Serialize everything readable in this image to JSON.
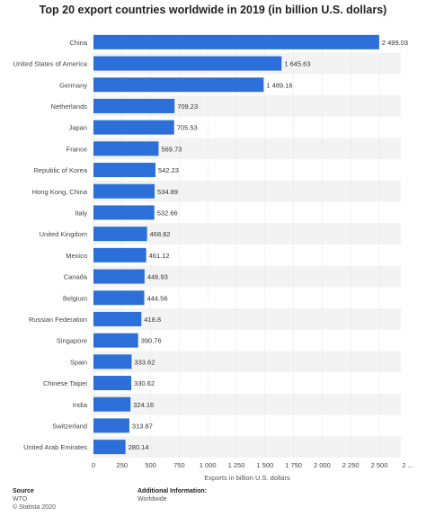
{
  "chart_data": {
    "type": "bar",
    "orientation": "horizontal",
    "title": "Top 20 export countries worldwide in 2019 (in billion U.S. dollars)",
    "xlabel": "Exports in billion U.S. dollars",
    "ylabel": "",
    "xlim": [
      0,
      2750
    ],
    "x_ticks": [
      "0",
      "250",
      "500",
      "750",
      "1 000",
      "1 250",
      "1 500",
      "1 750",
      "2 000",
      "2 250",
      "2 500",
      "2 ..."
    ],
    "categories": [
      "China",
      "United States of America",
      "Germany",
      "Netherlands",
      "Japan",
      "France",
      "Republic of Korea",
      "Hong Kong, China",
      "Italy",
      "United Kingdom",
      "Mexico",
      "Canada",
      "Belgium",
      "Russian Federation",
      "Singapore",
      "Spain",
      "Chinese Taipei",
      "India",
      "Switzerland",
      "United Arab Emirates"
    ],
    "values": [
      2499.03,
      1645.63,
      1489.16,
      709.23,
      705.53,
      569.73,
      542.23,
      534.89,
      532.66,
      468.82,
      461.12,
      446.93,
      444.56,
      418.8,
      390.76,
      333.62,
      330.62,
      324.16,
      313.87,
      280.14
    ],
    "value_labels": [
      "2 499.03",
      "1 645.63",
      "1 489.16",
      "709.23",
      "705.53",
      "569.73",
      "542.23",
      "534.89",
      "532.66",
      "468.82",
      "461.12",
      "446.93",
      "444.56",
      "418.8",
      "390.76",
      "333.62",
      "330.62",
      "324.16",
      "313.87",
      "280.14"
    ],
    "bar_color": "#2c6fd9",
    "stripe_color": "#f3f3f3",
    "grid": true
  },
  "footer": {
    "source_heading": "Source",
    "source_lines": [
      "WTO",
      "© Statista 2020"
    ],
    "info_heading": "Additional Information:",
    "info_lines": [
      "Worldwide"
    ]
  }
}
